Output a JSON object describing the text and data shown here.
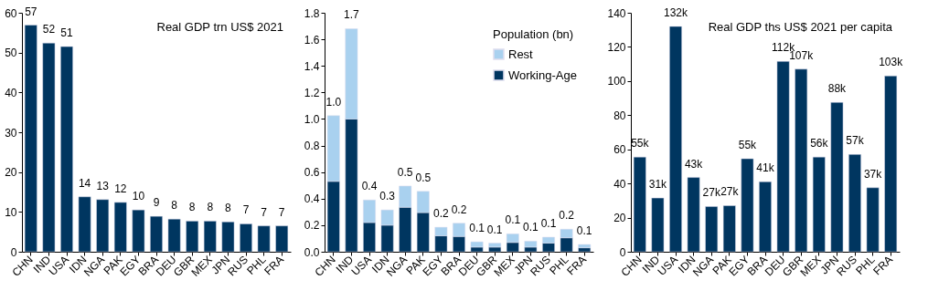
{
  "chart_data": [
    {
      "type": "bar",
      "title": "Real GDP trn US$ 2021",
      "categories": [
        "CHN",
        "IND",
        "USA",
        "IDN",
        "NGA",
        "PAK",
        "EGY",
        "BRA",
        "DEU",
        "GBR",
        "MEX",
        "JPN",
        "RUS",
        "PHL",
        "FRA"
      ],
      "values": [
        56.9,
        52.4,
        51.5,
        13.8,
        13.1,
        12.4,
        10.5,
        8.9,
        8.2,
        7.7,
        7.7,
        7.5,
        7.0,
        6.5,
        6.5
      ],
      "value_labels": [
        "57",
        "52",
        "51",
        "14",
        "13",
        "12",
        "10",
        "9",
        "8",
        "8",
        "8",
        "8",
        "7",
        "7",
        "7"
      ],
      "color": "#003660",
      "ylim": [
        0,
        60
      ],
      "yticks": [
        0,
        10,
        20,
        30,
        40,
        50,
        60
      ]
    },
    {
      "type": "bar",
      "stacked": true,
      "legend_title": "Population (bn)",
      "legend": "top right",
      "categories": [
        "CHN",
        "IND",
        "USA",
        "IDN",
        "NGA",
        "PAK",
        "EGY",
        "BRA",
        "DEU",
        "GBR",
        "MEX",
        "JPN",
        "RUS",
        "PHL",
        "FRA"
      ],
      "series": [
        {
          "name": "Working-Age",
          "color": "#003660",
          "values": [
            0.53,
            1.0,
            0.22,
            0.2,
            0.335,
            0.295,
            0.12,
            0.115,
            0.035,
            0.035,
            0.07,
            0.035,
            0.065,
            0.105,
            0.03
          ]
        },
        {
          "name": "Rest",
          "color": "#a9d1ef",
          "values": [
            0.495,
            0.68,
            0.17,
            0.115,
            0.16,
            0.16,
            0.065,
            0.1,
            0.04,
            0.03,
            0.065,
            0.045,
            0.045,
            0.065,
            0.025
          ]
        }
      ],
      "totals": [
        "1.0",
        "1.7",
        "0.4",
        "0.3",
        "0.5",
        "0.5",
        "0.2",
        "0.2",
        "0.1",
        "0.1",
        "0.1",
        "0.1",
        "0.1",
        "0.2",
        "0.1"
      ],
      "ylim": [
        0,
        1.8
      ],
      "yticks": [
        {
          "value": 0,
          "label": "0.0"
        },
        {
          "value": 0.2,
          "label": "0.2"
        },
        {
          "value": 0.4,
          "label": "0.4"
        },
        {
          "value": 0.6,
          "label": "0.6"
        },
        {
          "value": 0.8,
          "label": "0.8"
        },
        {
          "value": 1.0,
          "label": "1.0"
        },
        {
          "value": 1.2,
          "label": "1.2"
        },
        {
          "value": 1.4,
          "label": "1.4"
        },
        {
          "value": 1.6,
          "label": "1.6"
        },
        {
          "value": 1.8,
          "label": "1.8"
        }
      ]
    },
    {
      "type": "bar",
      "title": "Real GDP ths US$ 2021 per capita",
      "categories": [
        "CHN",
        "IND",
        "USA",
        "IDN",
        "NGA",
        "PAK",
        "EGY",
        "BRA",
        "DEU",
        "GBR",
        "MEX",
        "JPN",
        "RUS",
        "PHL",
        "FRA"
      ],
      "values": [
        55.5,
        31.5,
        132,
        43.5,
        26.5,
        27,
        54.5,
        41,
        111.5,
        107,
        55.5,
        87.5,
        57,
        37.5,
        103
      ],
      "value_labels": [
        "55k",
        "31k",
        "132k",
        "43k",
        "27k",
        "27k",
        "55k",
        "41k",
        "112k",
        "107k",
        "56k",
        "88k",
        "57k",
        "37k",
        "103k"
      ],
      "color": "#003660",
      "ylim": [
        0,
        140
      ],
      "yticks": [
        0,
        20,
        40,
        60,
        80,
        100,
        120,
        140
      ]
    }
  ]
}
